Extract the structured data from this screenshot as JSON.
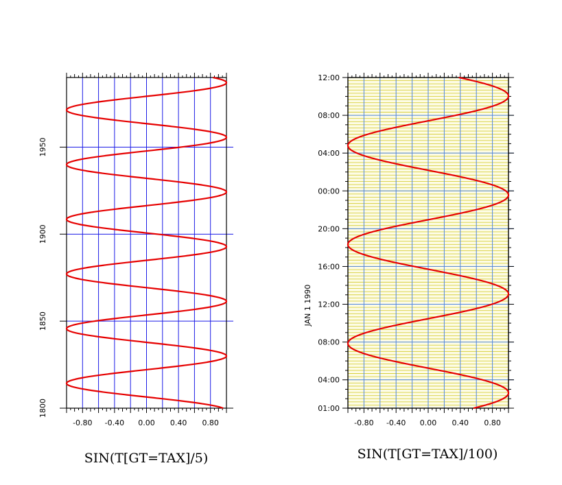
{
  "chart_data": [
    {
      "type": "line",
      "title": "SIN(T[GT=TAX]/5)",
      "orientation": "vertical",
      "x_range": [
        -1.0,
        1.0
      ],
      "x_ticks": [
        "-0.80",
        "-0.40",
        "0.00",
        "0.40",
        "0.80"
      ],
      "y_range": [
        1800,
        1990
      ],
      "y_ticks": [
        "1800",
        "1850",
        "1900",
        "1950"
      ],
      "y_tick_years": [
        1800,
        1850,
        1900,
        1950
      ],
      "grid": true,
      "grid_color": "#1a1ae6",
      "background": "#ffffff",
      "series": [
        {
          "expression": "sin(t/5)",
          "t_start": 1800,
          "t_end": 1990,
          "color": "#e60000"
        }
      ]
    },
    {
      "type": "line",
      "title": "SIN(T[GT=TAX]/100)",
      "orientation": "vertical",
      "x_range": [
        -1.0,
        1.0
      ],
      "x_ticks": [
        "-0.80",
        "-0.40",
        "0.00",
        "0.40",
        "0.80"
      ],
      "y_axis_label": "JAN   1 1990",
      "y_range_hours": [
        1,
        36
      ],
      "y_ticks": [
        "01:00",
        "04:00",
        "08:00",
        "12:00",
        "16:00",
        "20:00",
        "00:00",
        "04:00",
        "08:00",
        "12:00"
      ],
      "y_tick_hours": [
        1,
        4,
        8,
        12,
        16,
        20,
        24,
        28,
        32,
        36
      ],
      "grid": true,
      "grid_color": "#4f86e0",
      "minor_grid_color": "#d7cf3a",
      "background": "#fdfce6",
      "series": [
        {
          "expression": "sin(t/100), t in minutes",
          "t_start_minutes": 60,
          "t_end_minutes": 2160,
          "color": "#e60000"
        }
      ]
    }
  ]
}
